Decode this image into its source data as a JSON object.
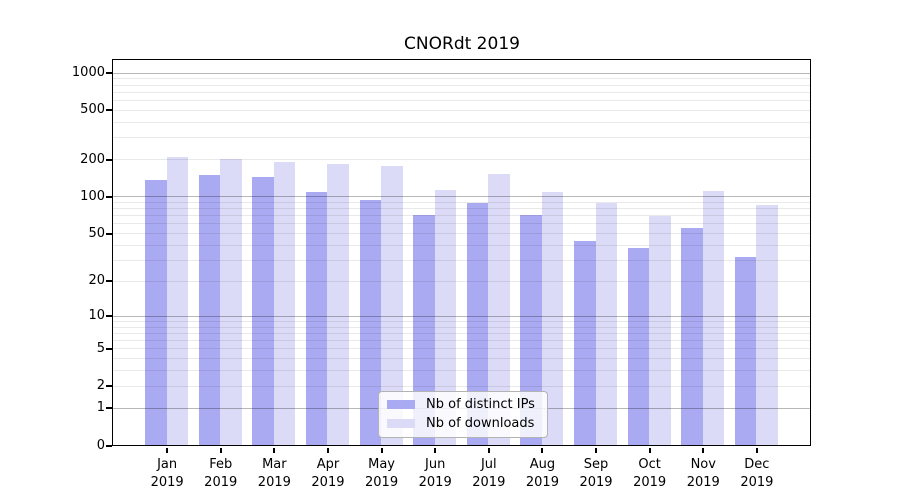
{
  "chart_data": {
    "type": "bar",
    "title": "CNORdt 2019",
    "categories": [
      "Jan 2019",
      "Feb 2019",
      "Mar 2019",
      "Apr 2019",
      "May 2019",
      "Jun 2019",
      "Jul 2019",
      "Aug 2019",
      "Sep 2019",
      "Oct 2019",
      "Nov 2019",
      "Dec 2019"
    ],
    "series": [
      {
        "name": "Nb of distinct IPs",
        "color": "#aaaaf2",
        "values": [
          135,
          150,
          143,
          108,
          93,
          70,
          88,
          71,
          43,
          38,
          55,
          32
        ]
      },
      {
        "name": "Nb of downloads",
        "color": "#dbdbf7",
        "values": [
          207,
          199,
          190,
          182,
          177,
          112,
          151,
          109,
          88,
          69,
          111,
          85
        ]
      }
    ],
    "xlabel": "",
    "ylabel": "",
    "yaxis": {
      "scale": "log1p",
      "tick_labels": [
        1000,
        500,
        200,
        100,
        50,
        20,
        10,
        5,
        2,
        1,
        0
      ],
      "major_gridlines": [
        1,
        10,
        100,
        1000
      ],
      "ylim": [
        0,
        1265
      ]
    },
    "grid": true,
    "legend_position": "lower center"
  },
  "colors": {
    "axis": "#000000",
    "major_grid": "#b9b9b9",
    "minor_grid": "#ebebeb",
    "legend_border": "#b3b3b3"
  }
}
